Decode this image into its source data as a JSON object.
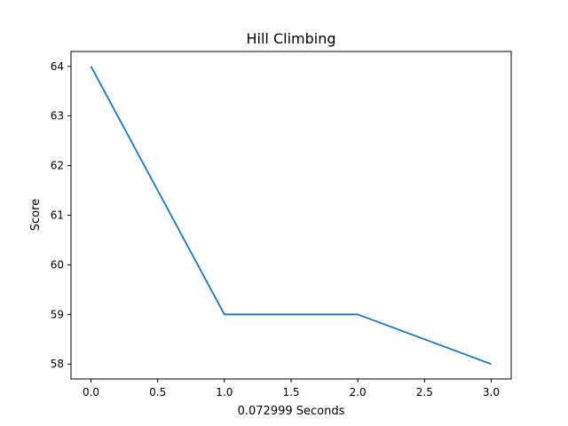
{
  "chart_data": {
    "type": "line",
    "title": "Hill Climbing",
    "xlabel": "0.072999 Seconds",
    "ylabel": "Score",
    "x": [
      0,
      1,
      2,
      3
    ],
    "series": [
      {
        "values": [
          64,
          59,
          59,
          58
        ],
        "color": "#1f77b4"
      }
    ],
    "xlim": [
      -0.15,
      3.15
    ],
    "ylim": [
      57.7,
      64.3
    ],
    "xticks": [
      0.0,
      0.5,
      1.0,
      1.5,
      2.0,
      2.5,
      3.0
    ],
    "xtick_labels": [
      "0.0",
      "0.5",
      "1.0",
      "1.5",
      "2.0",
      "2.5",
      "3.0"
    ],
    "yticks": [
      58,
      59,
      60,
      61,
      62,
      63,
      64
    ],
    "ytick_labels": [
      "58",
      "59",
      "60",
      "61",
      "62",
      "63",
      "64"
    ],
    "grid": false,
    "legend": null
  }
}
